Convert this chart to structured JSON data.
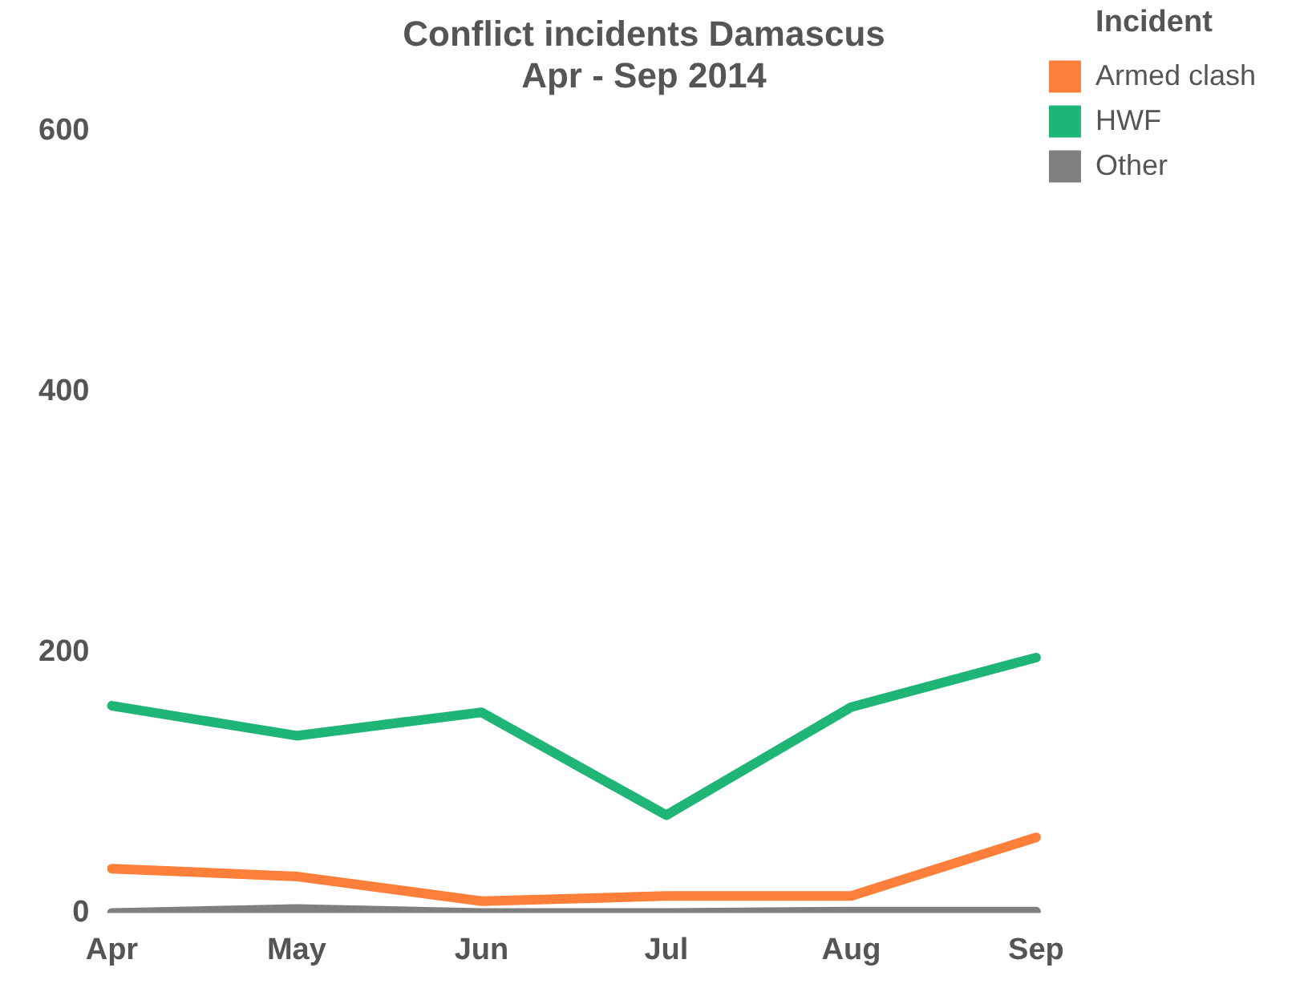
{
  "chart_data": {
    "type": "line",
    "title": "Conflict incidents Damascus\nApr - Sep 2014",
    "legend_title": "Incident",
    "categories": [
      "Apr",
      "May",
      "Jun",
      "Jul",
      "Aug",
      "Sep"
    ],
    "series": [
      {
        "name": "Armed clash",
        "color": "#fd7f3a",
        "values": [
          34,
          28,
          9,
          13,
          13,
          58
        ]
      },
      {
        "name": "HWF",
        "color": "#1fb576",
        "values": [
          159,
          136,
          154,
          75,
          158,
          196
        ]
      },
      {
        "name": "Other",
        "color": "#7f7f7f",
        "values": [
          0,
          3,
          0,
          0,
          1,
          1
        ]
      }
    ],
    "ylim": [
      0,
      600
    ],
    "yticks": [
      0,
      200,
      400,
      600
    ],
    "grid": false,
    "legend": "top right",
    "marker": "none",
    "line_style": "solid"
  }
}
